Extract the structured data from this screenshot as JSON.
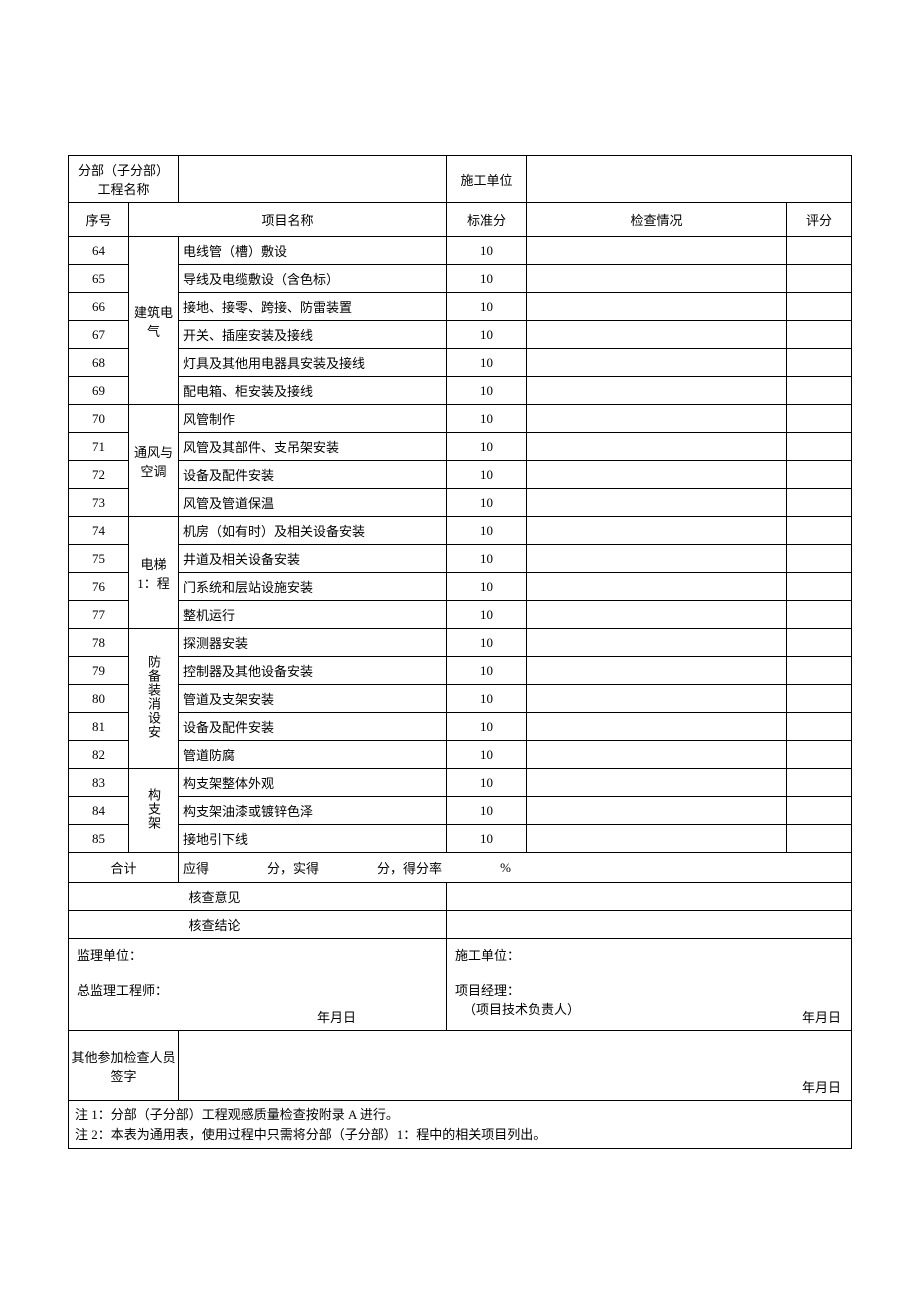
{
  "header": {
    "section_label": "分部（子分部）\n工程名称",
    "construction_unit_label": "施工单位",
    "cols": {
      "seq": "序号",
      "item": "项目名称",
      "std": "标准分",
      "check": "检查情况",
      "score": "评分"
    }
  },
  "groups": [
    {
      "label": "建筑电气",
      "rows": [
        {
          "seq": "64",
          "item": "电线管（槽）敷设",
          "std": "10"
        },
        {
          "seq": "65",
          "item": "导线及电缆敷设（含色标）",
          "std": "10"
        },
        {
          "seq": "66",
          "item": "接地、接零、跨接、防雷装置",
          "std": "10"
        },
        {
          "seq": "67",
          "item": "开关、插座安装及接线",
          "std": "10"
        },
        {
          "seq": "68",
          "item": "灯具及其他用电器具安装及接线",
          "std": "10"
        },
        {
          "seq": "69",
          "item": "配电箱、柜安装及接线",
          "std": "10"
        }
      ]
    },
    {
      "label": "通风与空调",
      "rows": [
        {
          "seq": "70",
          "item": "风管制作",
          "std": "10"
        },
        {
          "seq": "71",
          "item": "风管及其部件、支吊架安装",
          "std": "10"
        },
        {
          "seq": "72",
          "item": "设备及配件安装",
          "std": "10"
        },
        {
          "seq": "73",
          "item": "风管及管道保温",
          "std": "10"
        }
      ]
    },
    {
      "label": "电梯 1：程",
      "rows": [
        {
          "seq": "74",
          "item": "机房（如有时）及相关设备安装",
          "std": "10"
        },
        {
          "seq": "75",
          "item": "井道及相关设备安装",
          "std": "10"
        },
        {
          "seq": "76",
          "item": "门系统和层站设施安装",
          "std": "10"
        },
        {
          "seq": "77",
          "item": "整机运行",
          "std": "10"
        }
      ]
    },
    {
      "label": "防备装消设安",
      "vertical": true,
      "rows": [
        {
          "seq": "78",
          "item": "探测器安装",
          "std": "10"
        },
        {
          "seq": "79",
          "item": "控制器及其他设备安装",
          "std": "10"
        },
        {
          "seq": "80",
          "item": "管道及支架安装",
          "std": "10"
        },
        {
          "seq": "81",
          "item": "设备及配件安装",
          "std": "10"
        },
        {
          "seq": "82",
          "item": "管道防腐",
          "std": "10"
        }
      ]
    },
    {
      "label": "构支架",
      "vertical": true,
      "rows": [
        {
          "seq": "83",
          "item": "构支架整体外观",
          "std": "10"
        },
        {
          "seq": "84",
          "item": "构支架油漆或镀锌色泽",
          "std": "10"
        },
        {
          "seq": "85",
          "item": "接地引下线",
          "std": "10"
        }
      ]
    }
  ],
  "totals": {
    "label": "合计",
    "should_get": "应得",
    "fen_actual": "分，实得",
    "fen_rate": "分，得分率",
    "pct": "%"
  },
  "review": {
    "opinion_label": "核查意见",
    "conclusion_label": "核查结论"
  },
  "sign": {
    "supervisor_unit": "监理单位：",
    "chief_supervisor": "总监理工程师：",
    "construction_unit": "施工单位：",
    "pm": "项目经理：",
    "tech_lead": "（项目技术负责人）",
    "date": "年月日",
    "others_label": "其他参加检查人员签字"
  },
  "notes": {
    "n1": "注 1：分部（子分部）工程观感质量检查按附录 A 进行。",
    "n2": "注 2：本表为通用表，使用过程中只需将分部（子分部）1：程中的相关项目列出。"
  },
  "widths": {
    "seq": 60,
    "cat": 50,
    "item": 268,
    "std": 80,
    "check": 260,
    "score": 65
  }
}
